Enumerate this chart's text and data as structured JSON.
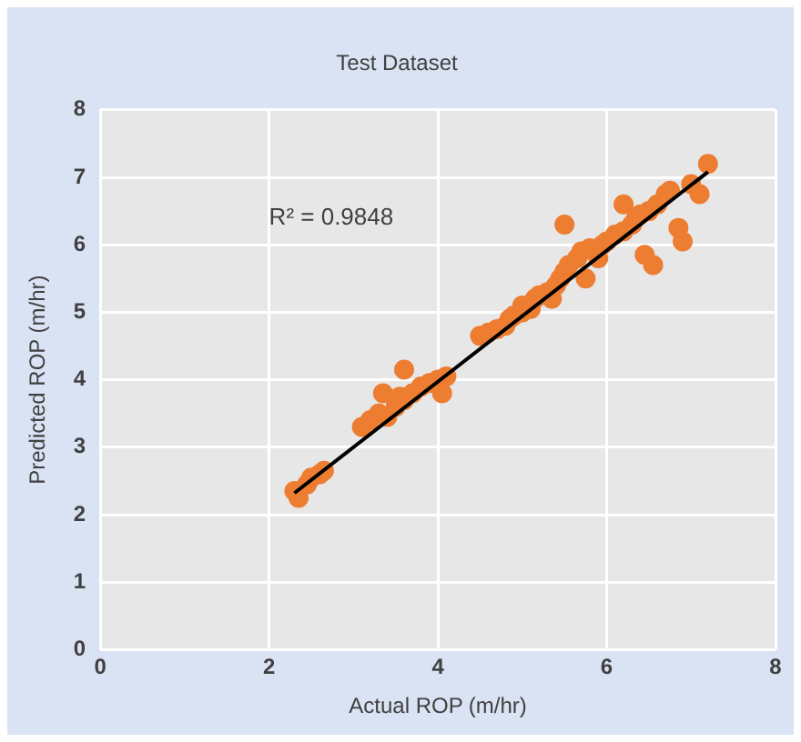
{
  "chart_data": {
    "type": "scatter",
    "title": "Test Dataset",
    "xlabel": "Actual ROP (m/hr)",
    "ylabel": "Predicted ROP (m/hr)",
    "annotations": [
      "R² = 0.9848"
    ],
    "xlim": [
      0,
      8
    ],
    "ylim": [
      0,
      8
    ],
    "xticks": [
      0,
      2,
      4,
      6,
      8
    ],
    "yticks": [
      0,
      1,
      2,
      3,
      4,
      5,
      6,
      7,
      8
    ],
    "grid": true,
    "legend": false,
    "marker": "circle",
    "series": [
      {
        "color": "#ed7d31",
        "x": [
          2.3,
          2.35,
          2.45,
          2.5,
          2.6,
          2.65,
          3.1,
          3.2,
          3.3,
          3.35,
          3.4,
          3.5,
          3.55,
          3.6,
          3.6,
          3.7,
          3.8,
          3.9,
          4.0,
          4.05,
          4.1,
          4.5,
          4.6,
          4.7,
          4.8,
          4.85,
          4.9,
          5.0,
          5.0,
          5.1,
          5.15,
          5.2,
          5.3,
          5.35,
          5.4,
          5.45,
          5.5,
          5.5,
          5.55,
          5.65,
          5.7,
          5.75,
          5.8,
          5.9,
          5.95,
          6.0,
          6.1,
          6.2,
          6.2,
          6.3,
          6.35,
          6.4,
          6.45,
          6.5,
          6.55,
          6.6,
          6.7,
          6.75,
          6.85,
          6.9,
          7.0,
          7.1,
          7.2
        ],
        "values": [
          2.35,
          2.25,
          2.45,
          2.55,
          2.6,
          2.65,
          3.3,
          3.4,
          3.5,
          3.8,
          3.45,
          3.6,
          3.75,
          4.15,
          3.7,
          3.8,
          3.9,
          3.95,
          4.0,
          3.8,
          4.05,
          4.65,
          4.7,
          4.75,
          4.8,
          4.9,
          4.95,
          5.0,
          5.1,
          5.05,
          5.2,
          5.25,
          5.3,
          5.2,
          5.4,
          5.5,
          5.6,
          6.3,
          5.7,
          5.8,
          5.9,
          5.5,
          5.95,
          5.8,
          6.0,
          6.05,
          6.15,
          6.2,
          6.6,
          6.3,
          6.4,
          6.45,
          5.85,
          6.5,
          5.7,
          6.6,
          6.75,
          6.8,
          6.25,
          6.05,
          6.9,
          6.75,
          7.2
        ]
      },
      {
        "type": "line",
        "color": "#000000",
        "marker": "none",
        "x": [
          2.3,
          7.2
        ],
        "values": [
          2.32,
          7.08
        ]
      }
    ]
  }
}
